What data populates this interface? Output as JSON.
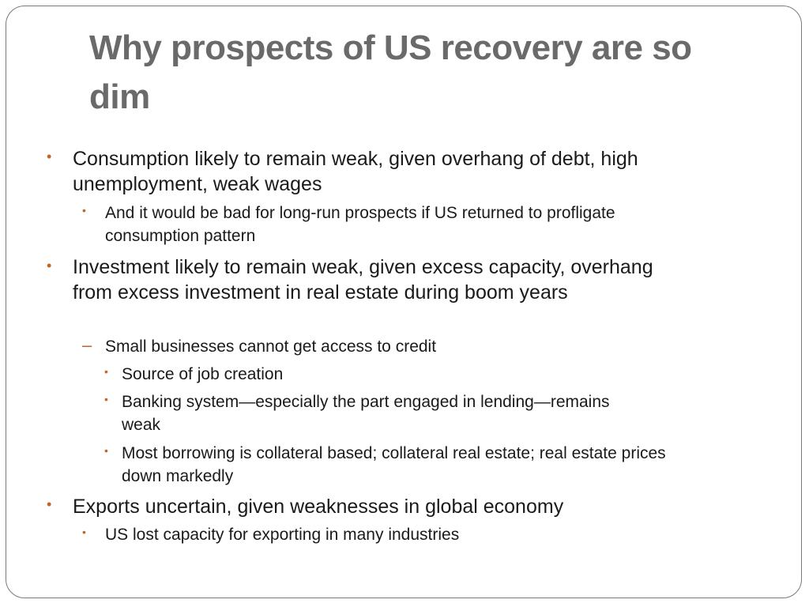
{
  "slide": {
    "title": "Why prospects of US recovery are so dim",
    "items": [
      {
        "keyword": "Consumption",
        "text": " likely to remain weak, given overhang of debt, high unemployment, weak wages",
        "sub": [
          {
            "text": "And it would be bad for long-run prospects if US returned to profligate consumption pattern"
          }
        ]
      },
      {
        "keyword": "Investment",
        "text": " likely to remain weak, given excess capacity, overhang from excess investment in real estate during boom years",
        "sub_dash": {
          "text": "Small businesses cannot get access to credit",
          "sub": [
            {
              "text": "Source of job creation"
            },
            {
              "text": "Banking system—especially the part engaged in lending—remains weak"
            },
            {
              "text": "Most borrowing is collateral based; collateral real estate; real estate prices down markedly"
            }
          ]
        }
      },
      {
        "keyword": "Exports",
        "text": " uncertain, given weaknesses in global economy",
        "sub": [
          {
            "text": "US lost capacity for exporting in many industries"
          }
        ]
      }
    ],
    "bullet_glyph": "•",
    "dash_glyph": "–",
    "colors": {
      "accent": "#c0642a",
      "title": "#6a6a6a",
      "text": "#1a1a1a",
      "border": "#7a7a7a"
    }
  }
}
